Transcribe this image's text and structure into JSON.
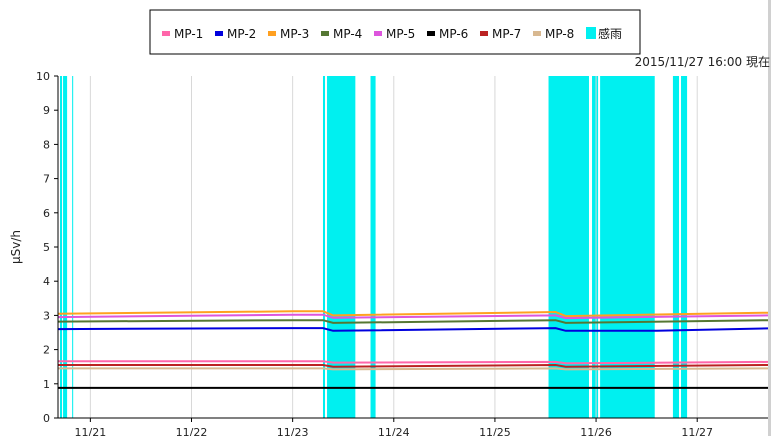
{
  "chart_data": {
    "type": "line",
    "annotation": "2015/11/27 16:00 現在",
    "ylabel": "μSv/h",
    "ylim": [
      0,
      10
    ],
    "yticks": [
      0,
      1,
      2,
      3,
      4,
      5,
      6,
      7,
      8,
      9,
      10
    ],
    "xlim": [
      0.68,
      7.7
    ],
    "xticks": [
      {
        "x": 1,
        "label": "11/21"
      },
      {
        "x": 2,
        "label": "11/22"
      },
      {
        "x": 3,
        "label": "11/23"
      },
      {
        "x": 4,
        "label": "11/24"
      },
      {
        "x": 5,
        "label": "11/25"
      },
      {
        "x": 6,
        "label": "11/26"
      },
      {
        "x": 7,
        "label": "11/27"
      }
    ],
    "grid": true,
    "legend_position": "top-center",
    "rain": {
      "name": "感雨",
      "color": "#00f0f0",
      "intervals": [
        [
          0.7,
          0.72
        ],
        [
          0.73,
          0.77
        ],
        [
          0.82,
          0.83
        ],
        [
          3.3,
          3.32
        ],
        [
          3.34,
          3.62
        ],
        [
          3.77,
          3.82
        ],
        [
          5.53,
          5.93
        ],
        [
          5.96,
          6.02
        ],
        [
          6.04,
          6.58
        ],
        [
          6.76,
          6.82
        ],
        [
          6.84,
          6.9
        ]
      ]
    },
    "series": [
      {
        "name": "MP-1",
        "color": "#ff66aa",
        "values": [
          [
            0.68,
            1.66
          ],
          [
            3.3,
            1.66
          ],
          [
            3.4,
            1.62
          ],
          [
            5.6,
            1.64
          ],
          [
            5.7,
            1.6
          ],
          [
            7.7,
            1.64
          ]
        ]
      },
      {
        "name": "MP-2",
        "color": "#0000dd",
        "values": [
          [
            0.68,
            2.6
          ],
          [
            3.0,
            2.63
          ],
          [
            3.3,
            2.63
          ],
          [
            3.4,
            2.55
          ],
          [
            5.6,
            2.63
          ],
          [
            5.7,
            2.55
          ],
          [
            6.6,
            2.55
          ],
          [
            7.7,
            2.62
          ]
        ]
      },
      {
        "name": "MP-3",
        "color": "#ffa020",
        "values": [
          [
            0.68,
            3.05
          ],
          [
            3.0,
            3.12
          ],
          [
            3.3,
            3.12
          ],
          [
            3.4,
            3.0
          ],
          [
            5.6,
            3.1
          ],
          [
            5.7,
            2.98
          ],
          [
            7.7,
            3.08
          ]
        ]
      },
      {
        "name": "MP-4",
        "color": "#557733",
        "values": [
          [
            0.68,
            2.82
          ],
          [
            3.0,
            2.86
          ],
          [
            3.3,
            2.86
          ],
          [
            3.4,
            2.78
          ],
          [
            5.6,
            2.86
          ],
          [
            5.7,
            2.78
          ],
          [
            7.7,
            2.86
          ]
        ]
      },
      {
        "name": "MP-5",
        "color": "#dd55dd",
        "values": [
          [
            0.68,
            2.95
          ],
          [
            3.0,
            3.02
          ],
          [
            3.3,
            3.02
          ],
          [
            3.4,
            2.93
          ],
          [
            5.6,
            3.0
          ],
          [
            5.7,
            2.92
          ],
          [
            7.7,
            3.0
          ]
        ]
      },
      {
        "name": "MP-6",
        "color": "#000000",
        "values": [
          [
            0.68,
            0.88
          ],
          [
            7.7,
            0.88
          ]
        ]
      },
      {
        "name": "MP-7",
        "color": "#bb2222",
        "values": [
          [
            0.68,
            1.55
          ],
          [
            3.3,
            1.55
          ],
          [
            3.4,
            1.5
          ],
          [
            5.6,
            1.55
          ],
          [
            5.7,
            1.5
          ],
          [
            7.7,
            1.55
          ]
        ]
      },
      {
        "name": "MP-8",
        "color": "#d8b890",
        "values": [
          [
            0.68,
            1.45
          ],
          [
            3.3,
            1.45
          ],
          [
            3.4,
            1.42
          ],
          [
            5.6,
            1.45
          ],
          [
            5.7,
            1.42
          ],
          [
            7.7,
            1.45
          ]
        ]
      }
    ]
  }
}
